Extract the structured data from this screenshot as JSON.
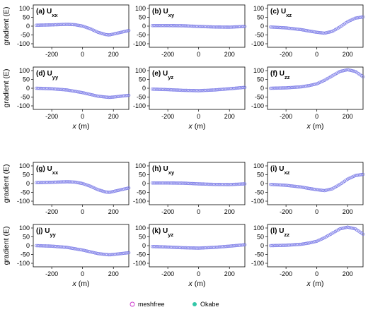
{
  "chart_data": {
    "type": "scatter",
    "x_range": [
      -320,
      300
    ],
    "y_range": [
      -120,
      120
    ],
    "x_ticks": [
      -200,
      0,
      200
    ],
    "y_ticks": [
      -100,
      -50,
      0,
      50,
      100
    ],
    "ylabel": "gradient (E)",
    "xlabel_var": "x",
    "xlabel_unit": " (m)",
    "legend": [
      {
        "name": "meshfree",
        "color": "#cc33cc",
        "marker": "open-circle"
      },
      {
        "name": "Okabe",
        "color": "#33c7a8",
        "marker": "filled-circle"
      }
    ],
    "marker_color": "#7f7fe8",
    "panels": [
      {
        "id": "a",
        "tag": "(a)",
        "comp": "xx",
        "group": 1,
        "x": [
          -300,
          -200,
          -100,
          -50,
          0,
          50,
          100,
          150,
          175,
          200,
          250,
          300
        ],
        "y": [
          5,
          7,
          10,
          8,
          0,
          -15,
          -35,
          -48,
          -50,
          -45,
          -35,
          -25
        ]
      },
      {
        "id": "b",
        "tag": "(b)",
        "comp": "xy",
        "group": 1,
        "x": [
          -300,
          -200,
          -100,
          0,
          100,
          200,
          300
        ],
        "y": [
          3,
          3,
          2,
          -2,
          -5,
          -6,
          -2
        ]
      },
      {
        "id": "c",
        "tag": "(c)",
        "comp": "xz",
        "group": 1,
        "x": [
          -300,
          -200,
          -100,
          -50,
          0,
          50,
          100,
          150,
          200,
          250,
          300
        ],
        "y": [
          -5,
          -10,
          -20,
          -28,
          -35,
          -40,
          -30,
          -5,
          25,
          45,
          52
        ]
      },
      {
        "id": "d",
        "tag": "(d)",
        "comp": "yy",
        "group": 1,
        "x": [
          -300,
          -200,
          -100,
          0,
          50,
          100,
          150,
          175,
          200,
          250,
          300
        ],
        "y": [
          0,
          -3,
          -10,
          -25,
          -35,
          -45,
          -50,
          -52,
          -50,
          -45,
          -40
        ]
      },
      {
        "id": "e",
        "tag": "(e)",
        "comp": "yz",
        "group": 1,
        "x": [
          -300,
          -200,
          -100,
          0,
          100,
          200,
          300
        ],
        "y": [
          -5,
          -8,
          -12,
          -14,
          -10,
          -3,
          5
        ]
      },
      {
        "id": "f",
        "tag": "(f)",
        "comp": "zz",
        "group": 1,
        "x": [
          -300,
          -200,
          -100,
          -50,
          0,
          50,
          100,
          150,
          200,
          250,
          300
        ],
        "y": [
          0,
          2,
          8,
          15,
          25,
          45,
          70,
          95,
          105,
          95,
          65
        ]
      },
      {
        "id": "g",
        "tag": "(g)",
        "comp": "xx",
        "group": 2,
        "x": [
          -300,
          -200,
          -100,
          -50,
          0,
          50,
          100,
          150,
          175,
          200,
          250,
          300
        ],
        "y": [
          5,
          7,
          10,
          8,
          0,
          -15,
          -35,
          -48,
          -50,
          -45,
          -35,
          -25
        ]
      },
      {
        "id": "h",
        "tag": "(h)",
        "comp": "xy",
        "group": 2,
        "x": [
          -300,
          -200,
          -100,
          0,
          100,
          200,
          300
        ],
        "y": [
          3,
          3,
          2,
          -2,
          -5,
          -6,
          -2
        ]
      },
      {
        "id": "i",
        "tag": "(i)",
        "comp": "xz",
        "group": 2,
        "x": [
          -300,
          -200,
          -100,
          -50,
          0,
          50,
          100,
          150,
          200,
          250,
          300
        ],
        "y": [
          -5,
          -10,
          -20,
          -28,
          -35,
          -40,
          -30,
          -5,
          25,
          45,
          52
        ]
      },
      {
        "id": "j",
        "tag": "(j)",
        "comp": "yy",
        "group": 2,
        "x": [
          -300,
          -200,
          -100,
          0,
          50,
          100,
          150,
          175,
          200,
          250,
          300
        ],
        "y": [
          0,
          -3,
          -10,
          -25,
          -35,
          -45,
          -50,
          -52,
          -50,
          -45,
          -40
        ]
      },
      {
        "id": "k",
        "tag": "(k)",
        "comp": "yz",
        "group": 2,
        "x": [
          -300,
          -200,
          -100,
          0,
          100,
          200,
          300
        ],
        "y": [
          -5,
          -8,
          -12,
          -14,
          -10,
          -3,
          5
        ]
      },
      {
        "id": "l",
        "tag": "(l)",
        "comp": "zz",
        "group": 2,
        "x": [
          -300,
          -200,
          -100,
          -50,
          0,
          50,
          100,
          150,
          200,
          250,
          300
        ],
        "y": [
          0,
          2,
          8,
          15,
          25,
          45,
          70,
          95,
          105,
          95,
          65
        ]
      }
    ]
  }
}
